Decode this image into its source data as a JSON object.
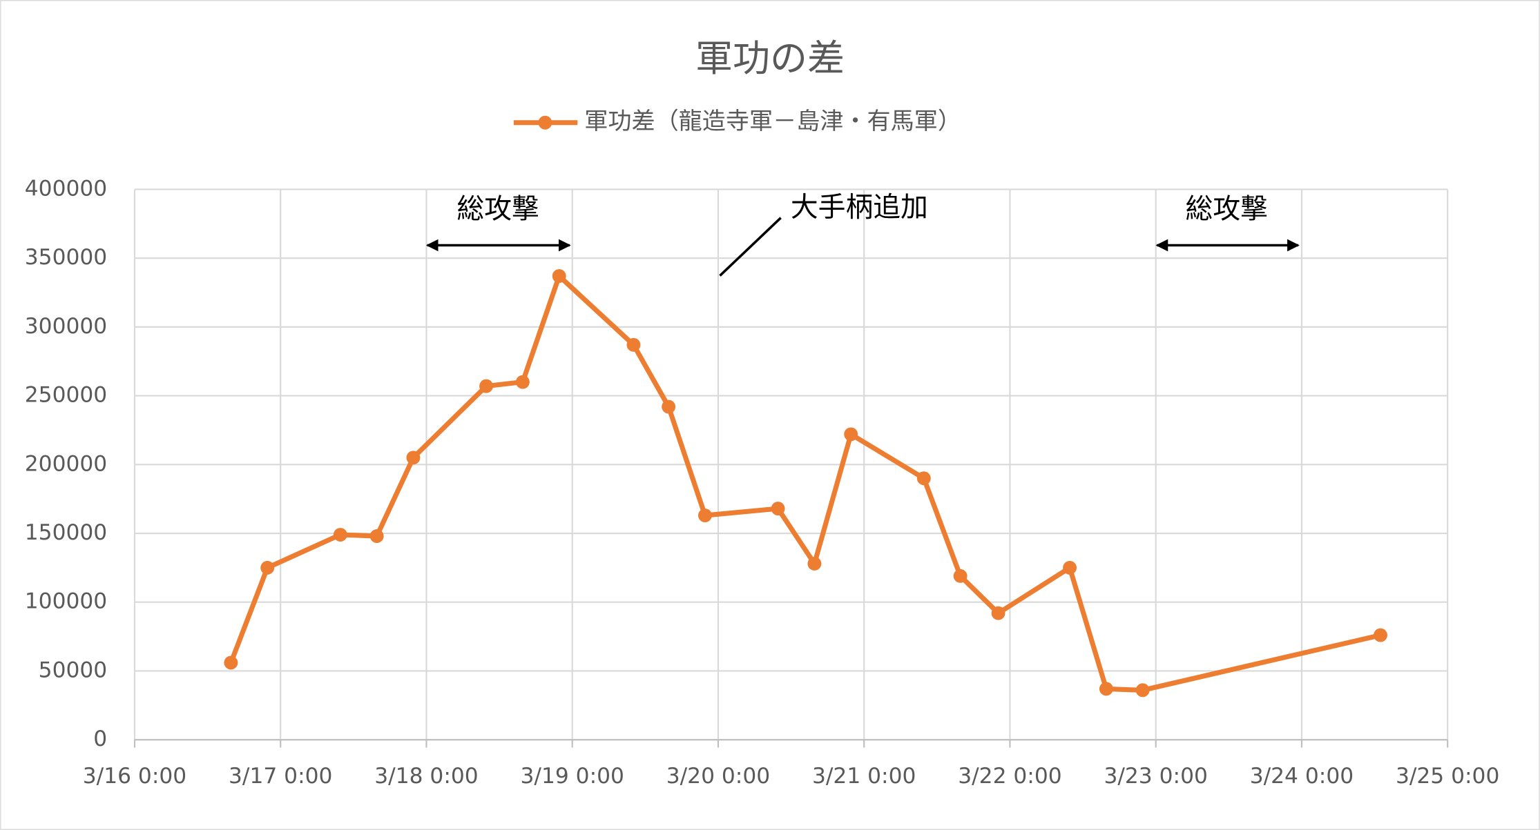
{
  "chart_data": {
    "type": "line",
    "title": "軍功の差",
    "x": [
      16.66,
      16.91,
      17.41,
      17.66,
      17.91,
      18.41,
      18.66,
      18.91,
      19.42,
      19.66,
      19.91,
      20.41,
      20.66,
      20.91,
      21.41,
      21.66,
      21.92,
      22.41,
      22.66,
      22.91,
      24.54
    ],
    "series": [
      {
        "name": "軍功差（龍造寺軍－島津・有馬軍）",
        "color": "#ed7d31",
        "values": [
          56000,
          125000,
          149000,
          148000,
          205000,
          257000,
          260000,
          337000,
          287000,
          242000,
          163000,
          168000,
          128000,
          222000,
          190000,
          119000,
          92000,
          125000,
          37000,
          36000,
          76000
        ]
      }
    ],
    "xlim": [
      16,
      25
    ],
    "xticks": [
      {
        "value": 16,
        "label": "3/16 0:00"
      },
      {
        "value": 17,
        "label": "3/17 0:00"
      },
      {
        "value": 18,
        "label": "3/18 0:00"
      },
      {
        "value": 19,
        "label": "3/19 0:00"
      },
      {
        "value": 20,
        "label": "3/20 0:00"
      },
      {
        "value": 21,
        "label": "3/21 0:00"
      },
      {
        "value": 22,
        "label": "3/22 0:00"
      },
      {
        "value": 23,
        "label": "3/23 0:00"
      },
      {
        "value": 24,
        "label": "3/24 0:00"
      },
      {
        "value": 25,
        "label": "3/25 0:00"
      }
    ],
    "ylim": [
      0,
      400000
    ],
    "yticks": [
      0,
      50000,
      100000,
      150000,
      200000,
      250000,
      300000,
      350000,
      400000
    ],
    "grid": true,
    "legend": "top",
    "annotations": [
      "総攻撃",
      "大手柄追加",
      "総攻撃"
    ]
  }
}
